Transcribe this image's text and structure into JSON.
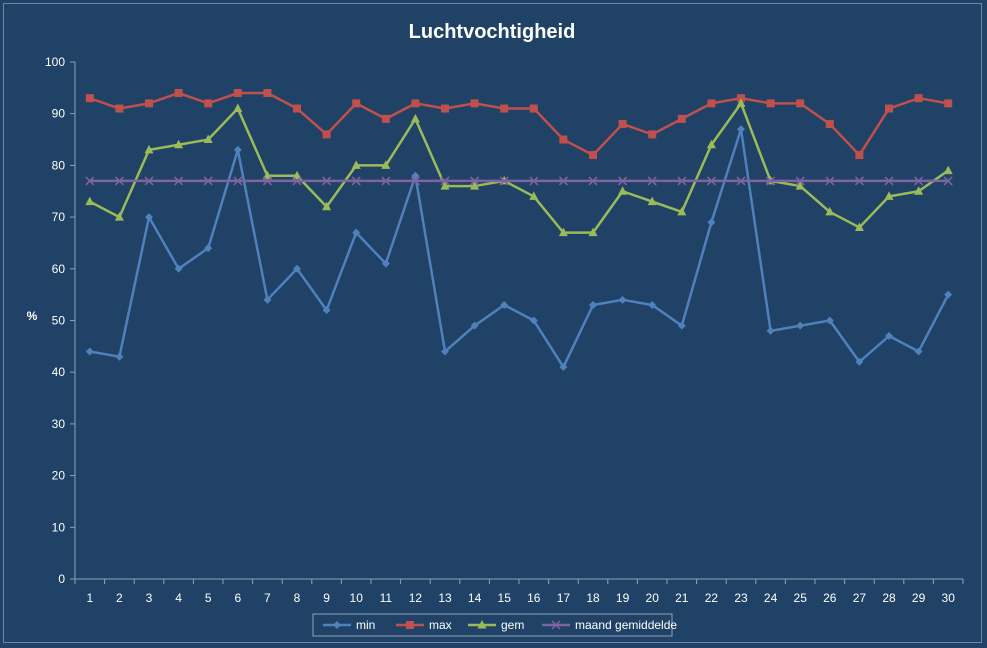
{
  "chart_data": {
    "type": "line",
    "title": "Luchtvochtigheid",
    "xlabel": "",
    "ylabel": "%",
    "ylim": [
      0,
      100
    ],
    "yticks": [
      0,
      10,
      20,
      30,
      40,
      50,
      60,
      70,
      80,
      90,
      100
    ],
    "categories": [
      "1",
      "2",
      "3",
      "4",
      "5",
      "6",
      "7",
      "8",
      "9",
      "10",
      "11",
      "12",
      "13",
      "14",
      "15",
      "16",
      "17",
      "18",
      "19",
      "20",
      "21",
      "22",
      "23",
      "24",
      "25",
      "26",
      "27",
      "28",
      "29",
      "30"
    ],
    "grid": false,
    "legend_position": "bottom",
    "background_color": "#1f4266",
    "series": [
      {
        "name": "min",
        "color": "#4f81bd",
        "marker": "diamond",
        "values": [
          44,
          43,
          70,
          60,
          64,
          83,
          54,
          60,
          52,
          67,
          61,
          78,
          44,
          49,
          53,
          50,
          41,
          53,
          54,
          53,
          49,
          69,
          87,
          48,
          49,
          50,
          42,
          47,
          44,
          55
        ]
      },
      {
        "name": "max",
        "color": "#c0504d",
        "marker": "square",
        "values": [
          93,
          91,
          92,
          94,
          92,
          94,
          94,
          91,
          86,
          92,
          89,
          92,
          91,
          92,
          91,
          91,
          85,
          82,
          88,
          86,
          89,
          92,
          93,
          92,
          92,
          88,
          82,
          91,
          93,
          92
        ]
      },
      {
        "name": "gem",
        "color": "#9bbb59",
        "marker": "triangle",
        "values": [
          73,
          70,
          83,
          84,
          85,
          91,
          78,
          78,
          72,
          80,
          80,
          89,
          76,
          76,
          77,
          74,
          67,
          67,
          75,
          73,
          71,
          84,
          92,
          77,
          76,
          71,
          68,
          74,
          75,
          79
        ]
      },
      {
        "name": "maand gemiddelde",
        "color": "#8064a2",
        "marker": "x",
        "values": [
          77,
          77,
          77,
          77,
          77,
          77,
          77,
          77,
          77,
          77,
          77,
          77,
          77,
          77,
          77,
          77,
          77,
          77,
          77,
          77,
          77,
          77,
          77,
          77,
          77,
          77,
          77,
          77,
          77,
          77
        ]
      }
    ]
  }
}
